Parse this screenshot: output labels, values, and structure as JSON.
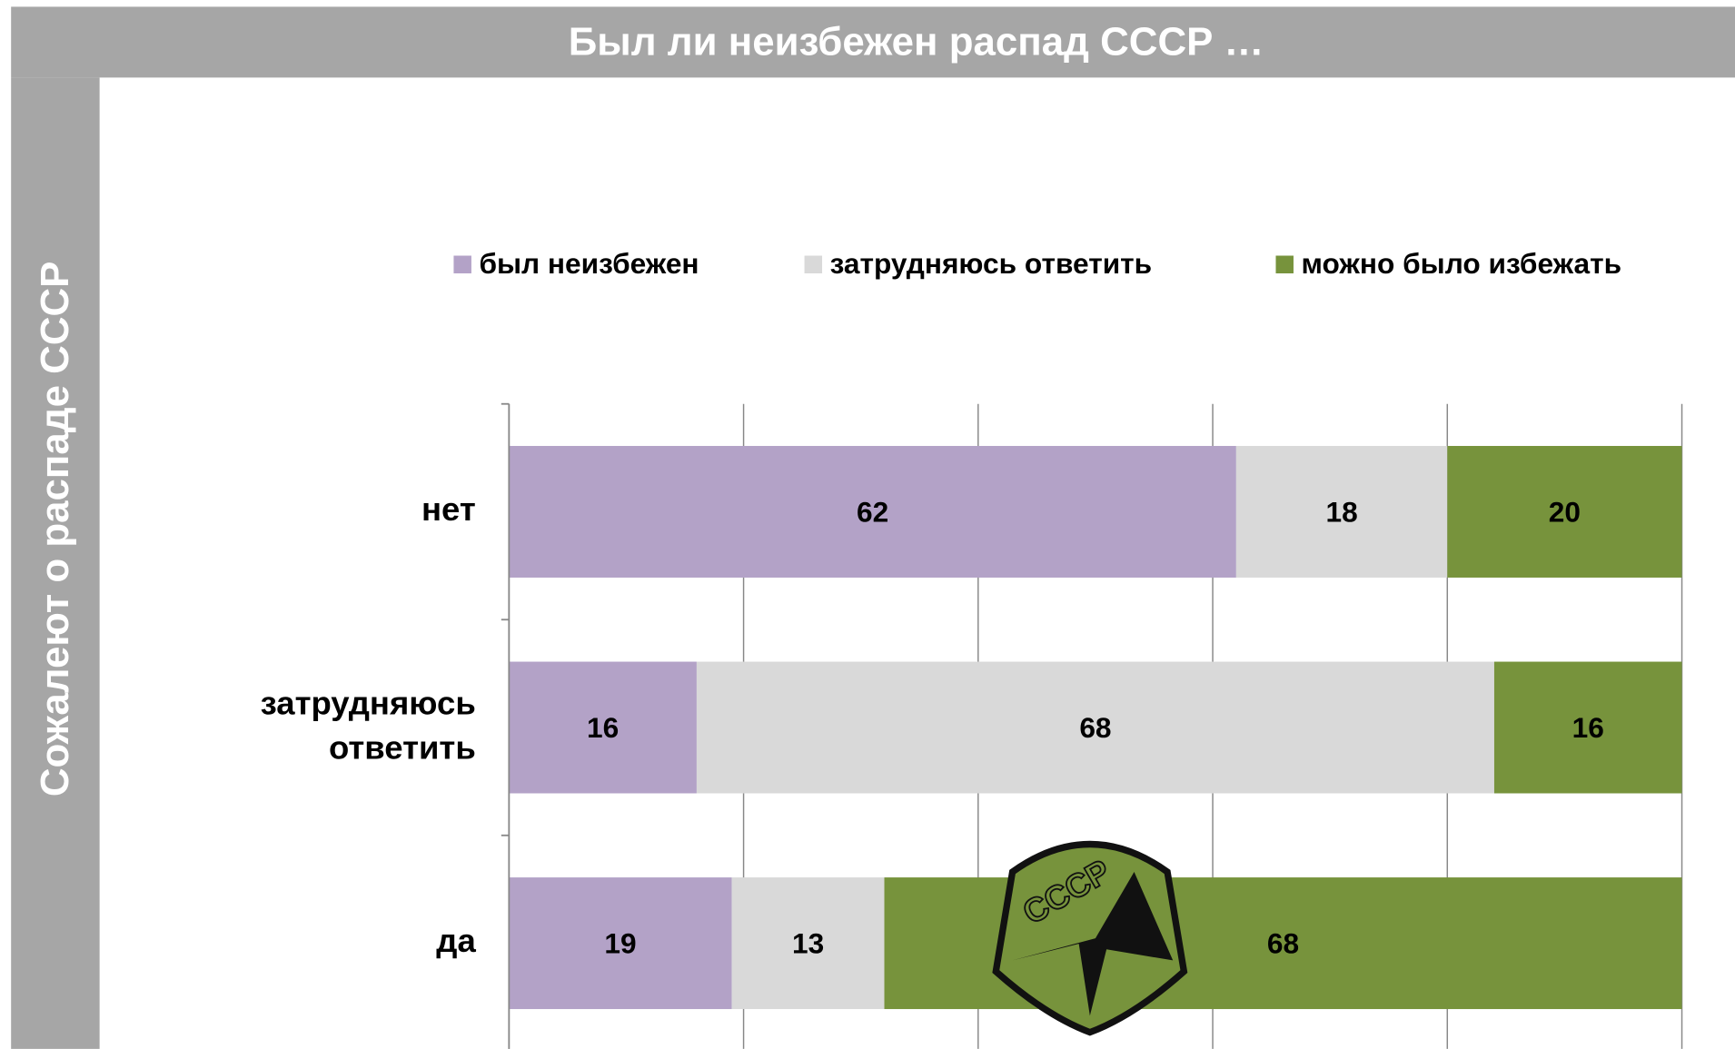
{
  "chart_data": {
    "type": "bar",
    "orientation": "horizontal",
    "stacked": true,
    "title": "Был ли неизбежен распад СССР …",
    "y_label": "Сожалеют о распаде СССР",
    "categories": [
      "нет",
      "затрудняюсь ответить",
      "да"
    ],
    "series": [
      {
        "name": "был неизбежен",
        "color": "#b3a2c7",
        "values": [
          62,
          16,
          19
        ]
      },
      {
        "name": "затрудняюсь ответить",
        "color": "#d9d9d9",
        "values": [
          18,
          68,
          13
        ]
      },
      {
        "name": "можно было избежать",
        "color": "#77933c",
        "values": [
          20,
          16,
          68
        ]
      }
    ],
    "xlim": [
      0,
      100
    ],
    "xticks": [
      0,
      20,
      40,
      60,
      80,
      100
    ],
    "grid": true,
    "legend": "top"
  },
  "emblem": {
    "text": "СССР"
  }
}
